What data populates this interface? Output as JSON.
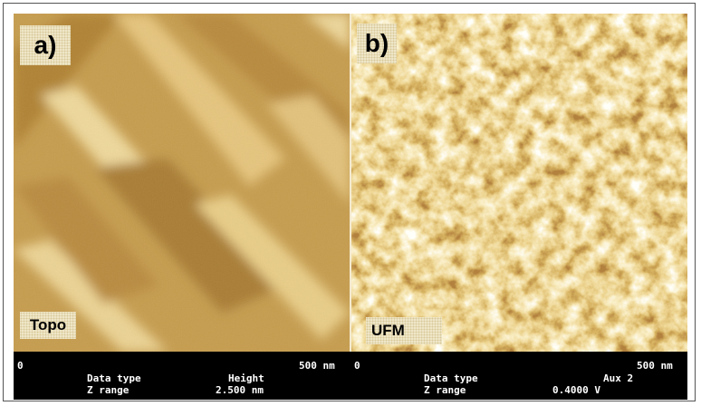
{
  "panels": [
    {
      "label": "a)",
      "channel": "Topo",
      "scale_start": "0",
      "scale_end": "500 nm",
      "data_type_label": "Data type",
      "data_type": "Height",
      "z_range_label": "Z range",
      "z_range": "2.500 nm"
    },
    {
      "label": "b)",
      "channel": "UFM",
      "scale_start": "0",
      "scale_end": "500 nm",
      "data_type_label": "Data type",
      "data_type": "Aux 2",
      "z_range_label": "Z range",
      "z_range": "0.4000 V"
    }
  ]
}
